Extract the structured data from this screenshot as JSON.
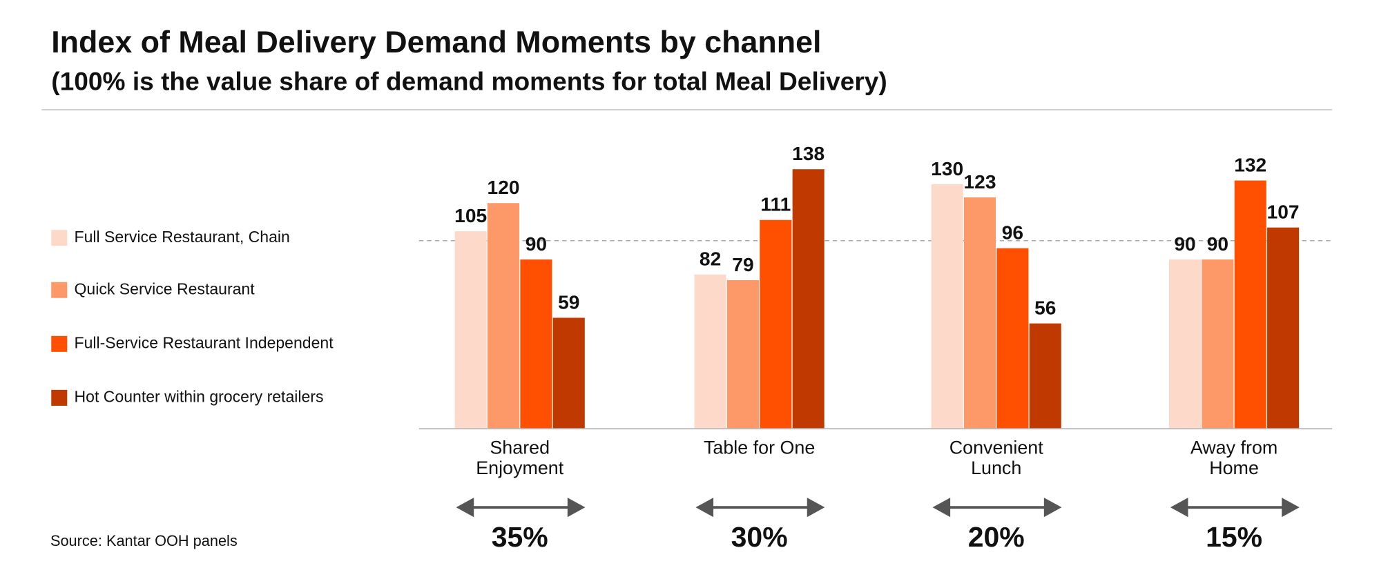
{
  "chart_data": {
    "type": "bar",
    "title": "Index of Meal Delivery Demand Moments by channel",
    "subtitle": "(100% is the value share of demand moments for total Meal Delivery)",
    "categories": [
      "Shared\nEnjoyment",
      "Table for One",
      "Convenient\nLunch",
      "Away from\nHome"
    ],
    "series": [
      {
        "name": "Full Service Restaurant, Chain",
        "color": "#fdd9c9",
        "values": [
          105,
          82,
          130,
          90
        ]
      },
      {
        "name": "Quick Service Restaurant",
        "color": "#fd9868",
        "values": [
          120,
          79,
          123,
          90
        ]
      },
      {
        "name": "Full-Service Restaurant Independent",
        "color": "#fe5000",
        "values": [
          90,
          111,
          96,
          132
        ]
      },
      {
        "name": "Hot Counter within grocery retailers",
        "color": "#c03a00",
        "values": [
          59,
          138,
          56,
          107
        ]
      }
    ],
    "shares": [
      "35%",
      "30%",
      "20%",
      "15%"
    ],
    "reference_line": 100,
    "ylim": [
      0,
      140
    ],
    "source": "Source: Kantar OOH panels"
  }
}
